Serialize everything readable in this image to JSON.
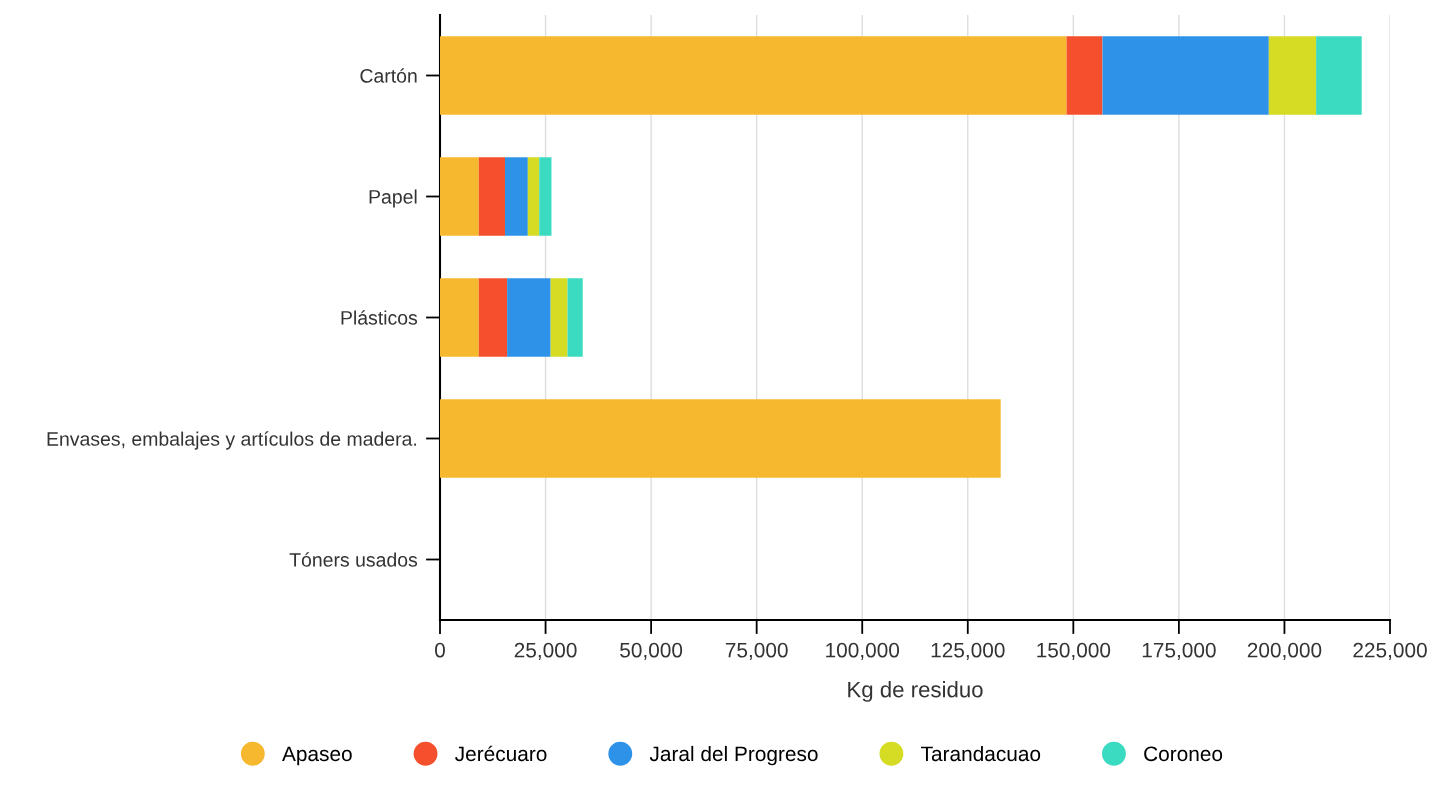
{
  "chart_data": {
    "type": "bar",
    "orientation": "horizontal",
    "stacked": true,
    "xlabel": "Kg de residuo",
    "categories": [
      "Cartón",
      "Papel",
      "Plásticos",
      "Envases, embalajes y artículos de madera.",
      "Tóners usados"
    ],
    "series": [
      {
        "name": "Apaseo",
        "color": "#f5b82e",
        "values": [
          148400,
          9200,
          9200,
          132800,
          null
        ]
      },
      {
        "name": "Jerécuaro",
        "color": "#f5502e",
        "values": [
          8500,
          6200,
          6700,
          null,
          null
        ]
      },
      {
        "name": "Jaral del Progreso",
        "color": "#2e93e8",
        "values": [
          39400,
          5400,
          10300,
          null,
          null
        ]
      },
      {
        "name": "Tarandacuao",
        "color": "#d5dc23",
        "values": [
          11200,
          2700,
          4000,
          null,
          null
        ]
      },
      {
        "name": "Coroneo",
        "color": "#3bdbc1",
        "values": [
          10800,
          2900,
          3600,
          null,
          null
        ]
      }
    ],
    "xlim": [
      0,
      225000
    ],
    "xticks": [
      0,
      {
        "value": 25000,
        "label": "25,000"
      },
      {
        "value": 50000,
        "label": "50,000"
      },
      {
        "value": 75000,
        "label": "75,000"
      },
      {
        "value": 100000,
        "label": "100,000"
      },
      {
        "value": 125000,
        "label": "125,000"
      },
      {
        "value": 150000,
        "label": "150,000"
      },
      {
        "value": 175000,
        "label": "175,000"
      },
      {
        "value": 200000,
        "label": "200,000"
      },
      {
        "value": 225000,
        "label": "225,000"
      }
    ],
    "grid": "x",
    "legend": "bottom"
  }
}
